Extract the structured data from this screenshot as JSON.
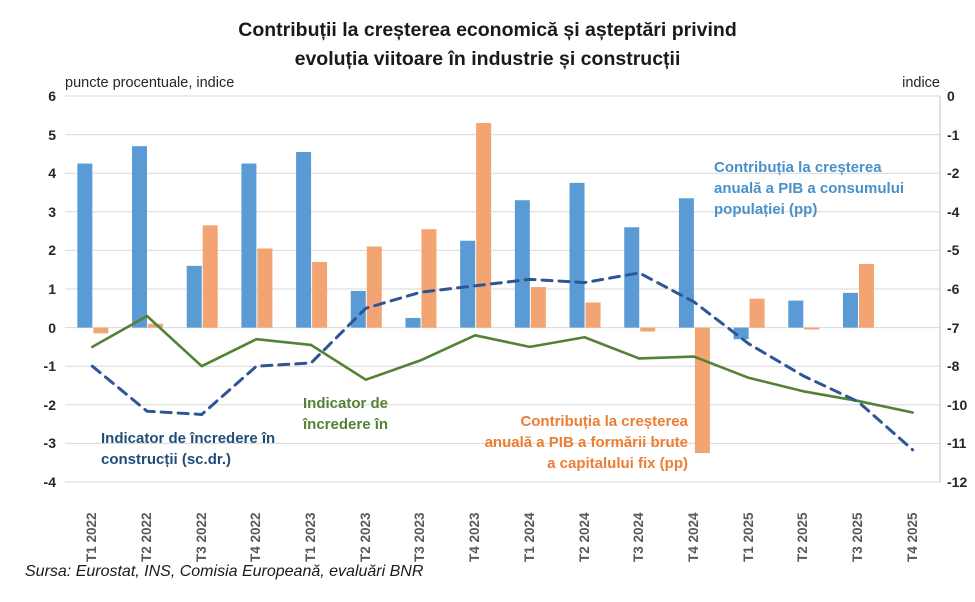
{
  "title_line1": "Contribuții la creșterea economică și așteptări privind",
  "title_line2": "evoluția viitoare în industrie și construcții",
  "axis_header_left": "puncte procentuale, indice",
  "axis_header_right": "indice",
  "source": "Sursa: Eurostat, INS, Comisia Europeană, evaluări BNR",
  "colors": {
    "bar_blue": "#5B9BD5",
    "bar_orange": "#F2A572",
    "line_green": "#548235",
    "line_navy": "#2F5597",
    "gridline": "#D9D9D9",
    "plot_border": "#BFBFBF",
    "axis_text": "#262626",
    "xlabel_text": "#595959",
    "annotation_blue": "#4A90C9",
    "annotation_orange": "#ED7D31",
    "annotation_green": "#548235",
    "annotation_navy": "#1F4E79"
  },
  "annotations": {
    "consum": "Contribuția la creșterea\nanuală a PIB a consumului\npopulației (pp)",
    "fbcf": "Contribuția la creșterea\nanuală a PIB a  formării brute\na capitalului fix (pp)",
    "industrie": "Indicator de\nîncredere în",
    "constructii": "Indicator de încredere în\nconstrucții (sc.dr.)"
  },
  "chart_data": {
    "type": "bar",
    "subtype": "combo bar+line, dual axis",
    "title": "Contribuții la creșterea economică și așteptări privind evoluția viitoare în industrie și construcții",
    "categories": [
      "T1 2022",
      "T2 2022",
      "T3 2022",
      "T4 2022",
      "T1 2023",
      "T2 2023",
      "T3 2023",
      "T4 2023",
      "T1 2024",
      "T2 2024",
      "T3 2024",
      "T4 2024",
      "T1 2025",
      "T2 2025",
      "T3 2025",
      "T4 2025"
    ],
    "left_axis": {
      "label": "puncte procentuale, indice",
      "min": -4,
      "max": 6,
      "ticks": [
        6,
        5,
        4,
        3,
        2,
        1,
        0,
        -1,
        -2,
        -3,
        -4
      ]
    },
    "right_axis": {
      "label": "indice",
      "min": -12,
      "max": 0,
      "tick_labels": [
        "0",
        "-1",
        "-2",
        "-4",
        "-5",
        "-6",
        "-7",
        "-8",
        "-10",
        "-11",
        "-12"
      ]
    },
    "grid": true,
    "legend_position": "none (text annotations on plot)",
    "series": [
      {
        "name": "Contribuția la creșterea anuală a PIB a consumului populației (pp)",
        "type": "bar",
        "axis": "left",
        "color": "#5B9BD5",
        "values": [
          4.25,
          4.7,
          1.6,
          4.25,
          4.55,
          0.95,
          0.25,
          2.25,
          3.3,
          3.75,
          2.6,
          3.35,
          -0.3,
          0.7,
          0.9,
          null
        ]
      },
      {
        "name": "Contribuția la creșterea anuală a PIB a formării brute a capitalului fix (pp)",
        "type": "bar",
        "axis": "left",
        "color": "#F2A572",
        "values": [
          -0.15,
          0.1,
          2.65,
          2.05,
          1.7,
          2.1,
          2.55,
          5.3,
          1.05,
          0.65,
          -0.1,
          -3.25,
          0.75,
          -0.05,
          1.65,
          null
        ]
      },
      {
        "name": "Indicator de încredere în (industrie)",
        "type": "line",
        "style": "solid",
        "axis": "left",
        "color": "#548235",
        "values": [
          -0.5,
          0.3,
          -1.0,
          -0.3,
          -0.45,
          -1.35,
          -0.85,
          -0.2,
          -0.5,
          -0.25,
          -0.8,
          -0.75,
          -1.3,
          -1.65,
          -1.9,
          -2.2
        ]
      },
      {
        "name": "Indicator de încredere în construcții (sc.dr.)",
        "type": "line",
        "style": "dashed",
        "axis": "right",
        "color": "#2F5597",
        "values": [
          -8.4,
          -9.8,
          -9.9,
          -8.4,
          -8.3,
          -6.6,
          -6.1,
          -5.9,
          -5.7,
          -5.8,
          -5.5,
          -6.4,
          -7.7,
          -8.7,
          -9.5,
          -11.0
        ]
      }
    ]
  }
}
